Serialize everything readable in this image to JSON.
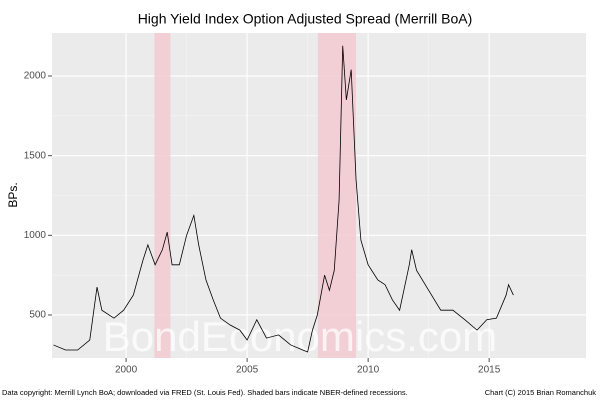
{
  "chart_data": {
    "type": "line",
    "title": "High Yield Index Option Adjusted Spread (Merrill BoA)",
    "y_label": "BPs.",
    "footnote": "Data copyright: Merrill Lynch BoA; downloaded via FRED (St. Louis Fed). Shaded bars indicate NBER-defined recessions.",
    "credit": "Chart (C) 2015 Brian Romanchuk",
    "watermark": "BondEconomics.com",
    "x": [
      1997.0,
      1997.5,
      1998.0,
      1998.5,
      1998.8,
      1999.0,
      1999.5,
      1999.9,
      2000.3,
      2000.7,
      2000.9,
      2001.2,
      2001.5,
      2001.7,
      2001.9,
      2002.2,
      2002.5,
      2002.8,
      2003.0,
      2003.3,
      2003.6,
      2003.9,
      2004.3,
      2004.7,
      2005.0,
      2005.4,
      2005.8,
      2006.3,
      2006.8,
      2007.3,
      2007.5,
      2007.7,
      2007.9,
      2008.2,
      2008.4,
      2008.6,
      2008.8,
      2008.95,
      2009.1,
      2009.3,
      2009.5,
      2009.7,
      2010.0,
      2010.4,
      2010.7,
      2011.0,
      2011.3,
      2011.7,
      2011.8,
      2012.0,
      2012.5,
      2013.0,
      2013.5,
      2014.0,
      2014.5,
      2014.9,
      2015.3,
      2015.7,
      2015.8,
      2016.0
    ],
    "values": [
      312,
      280,
      280,
      343,
      675,
      530,
      480,
      530,
      625,
      845,
      940,
      815,
      910,
      1020,
      815,
      815,
      1000,
      1125,
      940,
      720,
      595,
      480,
      437,
      405,
      343,
      470,
      355,
      375,
      312,
      280,
      268,
      405,
      500,
      750,
      655,
      780,
      1220,
      2190,
      1850,
      2040,
      1350,
      970,
      815,
      720,
      690,
      595,
      530,
      815,
      910,
      780,
      655,
      530,
      530,
      470,
      405,
      470,
      480,
      625,
      690,
      625
    ],
    "color": "#000000",
    "recessions": [
      [
        2001.17,
        2001.83
      ],
      [
        2007.92,
        2009.5
      ]
    ],
    "recession_color": "#f4c7cf",
    "xlim": [
      1996.94,
      2019.0
    ],
    "xticks": [
      2000,
      2005,
      2010,
      2015
    ],
    "ylim": [
      230,
      2270
    ],
    "yticks": [
      500,
      1000,
      1500,
      2000
    ],
    "grid": true
  }
}
